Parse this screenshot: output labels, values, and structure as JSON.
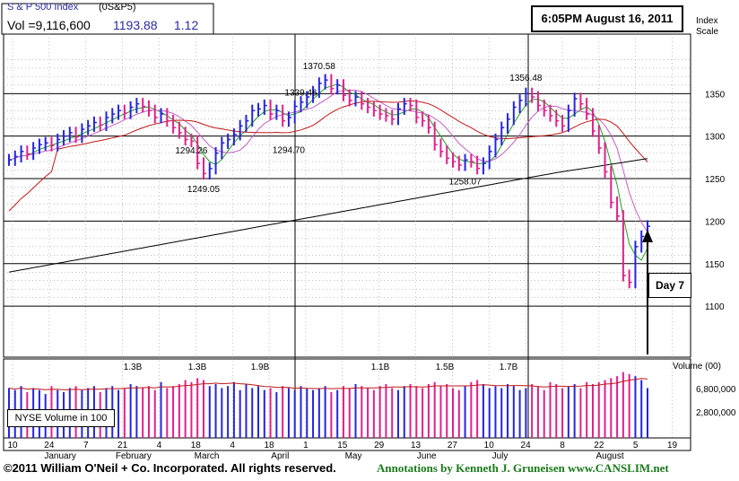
{
  "header": {
    "index_name": "S & P 500 Index",
    "symbol": "(0S&P5)",
    "volume_label": "Vol =9,116,600",
    "last_price": "1193.88",
    "change": "1.12",
    "timestamp": "6:05PM August 16, 2011",
    "scale_label_line1": "Index",
    "scale_label_line2": "Scale"
  },
  "annotation": {
    "day_label": "Day 7"
  },
  "volume_panel": {
    "title": "Volume (00)",
    "legend": "NYSE Volume in 100",
    "ticks": [
      "6,800,000",
      "2,800,000"
    ],
    "peak_labels": [
      "1.3B",
      "1.3B",
      "1.9B",
      "1.1B",
      "1.5B",
      "1.7B"
    ]
  },
  "footer": {
    "copyright": "©2011 William O'Neil + Co. Incorporated. All rights reserved.",
    "annotations": "Annotations by Kenneth J. Gruneisen  www.CANSLIM.net"
  },
  "colors": {
    "up_bar": "#2424e0",
    "down_bar": "#e0208c",
    "ma50": "#c01818",
    "ma200": "#000000",
    "ma10": "#20a020",
    "ma21": "#c060c0",
    "annotation_text": "#1a7a1a"
  },
  "chart_data": {
    "type": "ohlc",
    "y_axis_ticks": [
      1350,
      1300,
      1250,
      1200,
      1150,
      1100
    ],
    "ylim": [
      1040,
      1420
    ],
    "x_ticks": [
      "10",
      "24",
      "7",
      "21",
      "4",
      "18",
      "4",
      "18",
      "1",
      "15",
      "29",
      "13",
      "27",
      "10",
      "24",
      "8",
      "22",
      "5",
      "19"
    ],
    "month_labels": [
      "January",
      "February",
      "March",
      "April",
      "May",
      "June",
      "July",
      "August"
    ],
    "price_annotations": [
      {
        "label": "1294.26",
        "value": 1294.26
      },
      {
        "label": "1249.05",
        "value": 1249.05
      },
      {
        "label": "1339.46",
        "value": 1339.46
      },
      {
        "label": "1294.70",
        "value": 1294.7
      },
      {
        "label": "1370.58",
        "value": 1370.58
      },
      {
        "label": "1258.07",
        "value": 1258.07
      },
      {
        "label": "1356.48",
        "value": 1356.48
      }
    ],
    "close_path": [
      1272,
      1276,
      1282,
      1279,
      1286,
      1290,
      1292,
      1289,
      1296,
      1300,
      1304,
      1299,
      1308,
      1312,
      1316,
      1313,
      1322,
      1326,
      1330,
      1327,
      1334,
      1338,
      1335,
      1330,
      1322,
      1326,
      1318,
      1310,
      1304,
      1296,
      1294,
      1268,
      1256,
      1262,
      1280,
      1292,
      1296,
      1302,
      1312,
      1318,
      1330,
      1332,
      1336,
      1326,
      1330,
      1318,
      1322,
      1335,
      1340,
      1346,
      1352,
      1362,
      1366,
      1356,
      1360,
      1348,
      1342,
      1346,
      1338,
      1334,
      1330,
      1326,
      1324,
      1320,
      1332,
      1338,
      1336,
      1322,
      1318,
      1310,
      1290,
      1282,
      1274,
      1270,
      1266,
      1272,
      1270,
      1262,
      1268,
      1282,
      1296,
      1310,
      1320,
      1334,
      1342,
      1350,
      1346,
      1336,
      1330,
      1324,
      1318,
      1312,
      1330,
      1344,
      1338,
      1326,
      1306,
      1286,
      1258,
      1222,
      1206,
      1136,
      1128,
      1170,
      1182,
      1194
    ],
    "volume_path": [
      2.5,
      2.4,
      2.6,
      2.3,
      2.5,
      2.4,
      2.2,
      2.6,
      2.4,
      2.3,
      2.5,
      2.6,
      2.4,
      2.5,
      2.6,
      2.3,
      2.5,
      2.6,
      2.4,
      2.5,
      2.7,
      2.6,
      2.5,
      2.6,
      2.4,
      2.8,
      2.5,
      2.6,
      2.7,
      2.9,
      2.8,
      3.0,
      2.9,
      2.6,
      2.7,
      2.5,
      2.6,
      2.8,
      2.4,
      2.7,
      2.5,
      2.6,
      2.4,
      2.5,
      2.3,
      2.6,
      2.5,
      2.4,
      2.6,
      2.5,
      2.4,
      2.5,
      2.6,
      2.3,
      2.4,
      2.6,
      2.5,
      2.7,
      2.6,
      2.5,
      2.4,
      2.6,
      2.7,
      2.5,
      2.4,
      2.6,
      2.7,
      2.6,
      2.5,
      2.7,
      2.8,
      2.6,
      2.7,
      2.5,
      2.4,
      2.6,
      2.8,
      2.9,
      2.7,
      2.5,
      2.6,
      2.5,
      2.7,
      2.6,
      2.4,
      2.5,
      2.7,
      2.6,
      2.4,
      2.8,
      2.7,
      2.5,
      2.6,
      2.7,
      2.5,
      2.8,
      2.7,
      2.8,
      2.9,
      3.0,
      3.1,
      3.3,
      3.2,
      3.1,
      2.9,
      2.5
    ]
  }
}
